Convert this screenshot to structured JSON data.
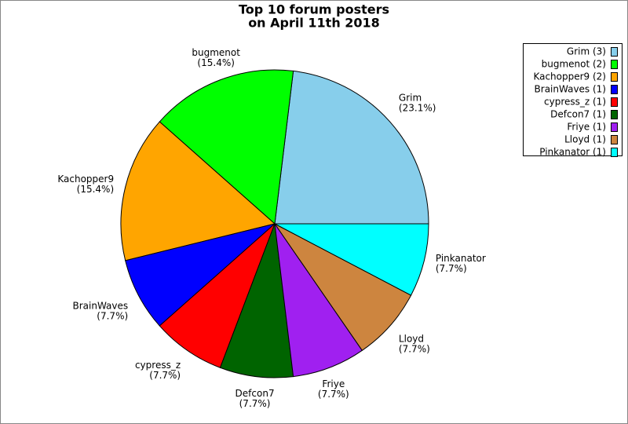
{
  "chart_data": {
    "type": "pie",
    "title": "Top 10 forum posters",
    "subtitle": "on April 11th 2018",
    "categories": [
      "Grim",
      "bugmenot",
      "Kachopper9",
      "BrainWaves",
      "cypress_z",
      "Defcon7",
      "Friye",
      "Lloyd",
      "Pinkanator"
    ],
    "values": [
      23.1,
      15.4,
      15.4,
      7.7,
      7.7,
      7.7,
      7.7,
      7.7,
      7.7
    ],
    "value_labels": [
      "(23.1%)",
      "(15.4%)",
      "(15.4%)",
      "(7.7%)",
      "(7.7%)",
      "(7.7%)",
      "(7.7%)",
      "(7.7%)",
      "(7.7%)"
    ],
    "legend_labels": [
      "Grim (3)",
      "bugmenot (2)",
      "Kachopper9 (2)",
      "BrainWaves (1)",
      "cypress_z (1)",
      "Defcon7 (1)",
      "Friye (1)",
      "Lloyd (1)",
      "Pinkanator (1)"
    ],
    "colors": [
      "#87ceeb",
      "#00ff00",
      "#ffa500",
      "#0000ff",
      "#ff0000",
      "#006400",
      "#a020f0",
      "#cd853f",
      "#00ffff"
    ],
    "legend_position": "upper right"
  }
}
